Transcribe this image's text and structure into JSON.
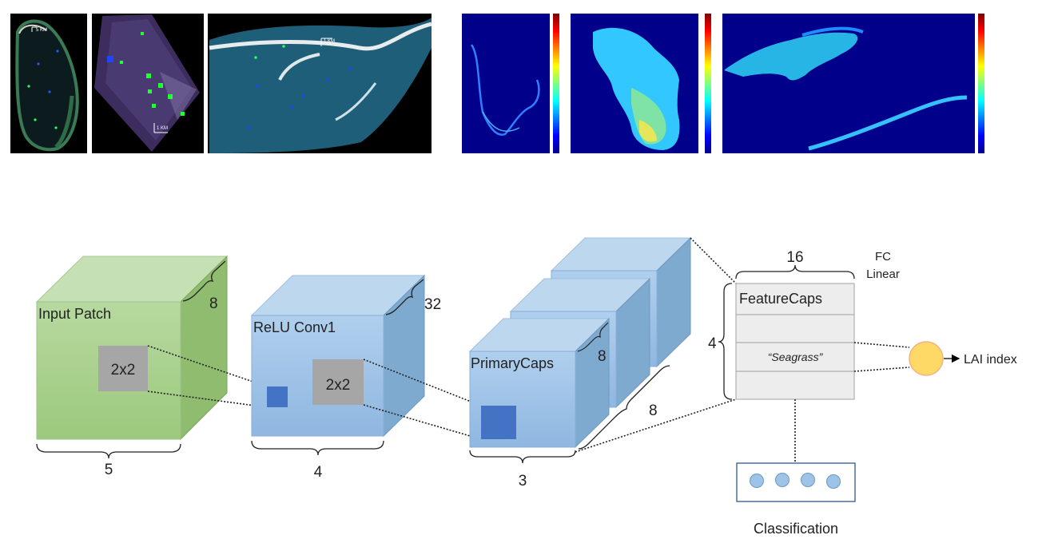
{
  "maps": {
    "scale_labels": [
      "5 KM",
      "1 KM",
      "1 KM"
    ],
    "colors": {
      "land_green": "#2a5e3a",
      "water_dark": "#0b1f2e",
      "cyan_water": "#2e8ab0",
      "heat_bg": "#00008b"
    }
  },
  "diagram": {
    "input": {
      "label": "Input Patch",
      "kernel": "2x2",
      "depth": "8",
      "width": "5"
    },
    "conv": {
      "label": "ReLU Conv1",
      "kernel": "2x2",
      "depth": "32",
      "width": "4"
    },
    "primary": {
      "label": "PrimaryCaps",
      "depth": "8",
      "stack": "8",
      "width": "3"
    },
    "feature": {
      "label": "FeatureCaps",
      "row_label": "“Seagrass”",
      "width": "16",
      "height": "4"
    },
    "fc": {
      "line1": "FC",
      "line2": "Linear"
    },
    "output": {
      "label": "LAI index"
    },
    "classification": {
      "label": "Classification"
    },
    "colors": {
      "green_front": "#a9d18e",
      "green_top": "#c5e0b4",
      "green_side": "#8fbc6e",
      "blue_front": "#9dc3e6",
      "blue_top": "#bdd7ee",
      "blue_side": "#7faacf",
      "dark_blue": "#4472c4",
      "gray": "#a6a6a6",
      "orange": "#ffd966"
    }
  }
}
